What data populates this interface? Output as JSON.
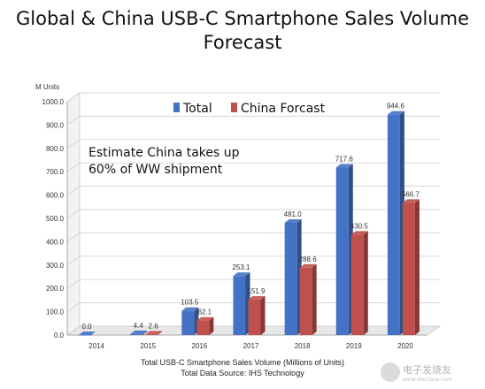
{
  "title_line1": "Global & China USB-C Smartphone Sales Volume",
  "title_line2": "Forecast",
  "annotation_line1": "Estimate China takes up",
  "annotation_line2": "60% of WW shipment",
  "footer_line1": "Total USB-C Smartphone Sales Volume (Millions of Units)",
  "footer_line2": "Total Data Source: IHS Technology",
  "watermark": {
    "text": "电子发烧友",
    "sub": "www.elecfans.com"
  },
  "chart_data": {
    "type": "bar",
    "title": "Global & China USB-C Smartphone Sales Volume Forecast",
    "ylabel": "M Units",
    "ylim": [
      0,
      1000
    ],
    "yticks": [
      "0.0",
      "100.0",
      "200.0",
      "300.0",
      "400.0",
      "500.0",
      "600.0",
      "700.0",
      "800.0",
      "900.0",
      "1000.0"
    ],
    "categories": [
      "2014",
      "2015",
      "2016",
      "2017",
      "2018",
      "2019",
      "2020"
    ],
    "series": [
      {
        "name": "Total",
        "color": "#4472C4",
        "values": [
          0.0,
          4.4,
          103.5,
          253.1,
          481.0,
          717.6,
          944.6
        ],
        "labels": [
          "0.0",
          "4.4",
          "103.5",
          "253.1",
          "481.0",
          "717.6",
          "944.6"
        ]
      },
      {
        "name": "China Forcast",
        "color": "#C0504D",
        "values": [
          null,
          2.6,
          62.1,
          151.9,
          288.6,
          430.5,
          566.7
        ],
        "labels": [
          "",
          "2.6",
          "62.1",
          "151.9",
          "288.6",
          "430.5",
          "566.7"
        ]
      }
    ],
    "legend": "top-center",
    "grid": true
  }
}
